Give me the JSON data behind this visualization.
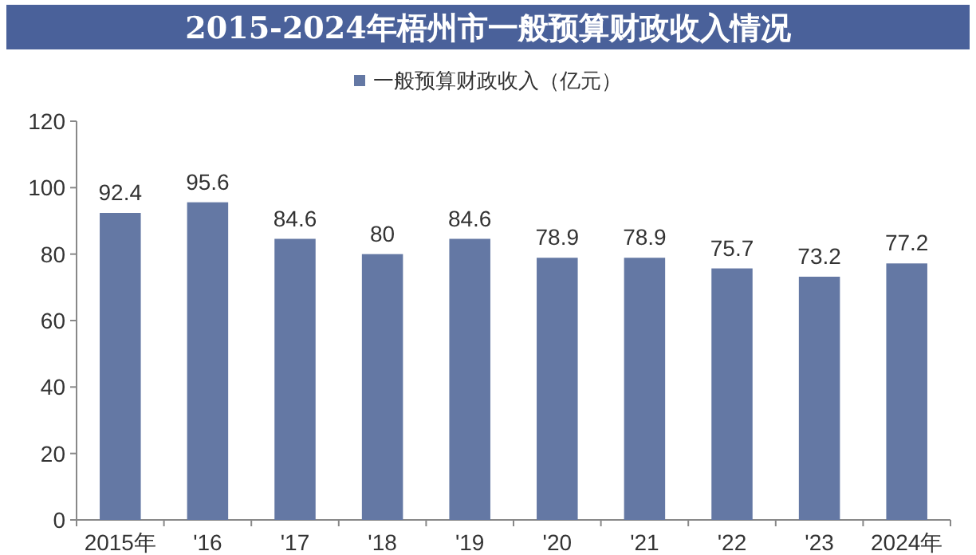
{
  "chart_data": {
    "type": "bar",
    "title": "2015-2024年梧州市一般预算财政收入情况",
    "categories": [
      "2015年",
      "'16",
      "'17",
      "'18",
      "'19",
      "'20",
      "'21",
      "'22",
      "'23",
      "2024年"
    ],
    "series": [
      {
        "name": "一般预算财政收入（亿元）",
        "color": "#6478a4",
        "values": [
          92.4,
          95.6,
          84.6,
          80,
          84.6,
          78.9,
          78.9,
          75.7,
          73.2,
          77.2
        ]
      }
    ],
    "ylim": [
      0,
      120
    ],
    "yticks": [
      0,
      20,
      40,
      60,
      80,
      100,
      120
    ],
    "data_labels": true,
    "legend": "top",
    "grid": false
  }
}
